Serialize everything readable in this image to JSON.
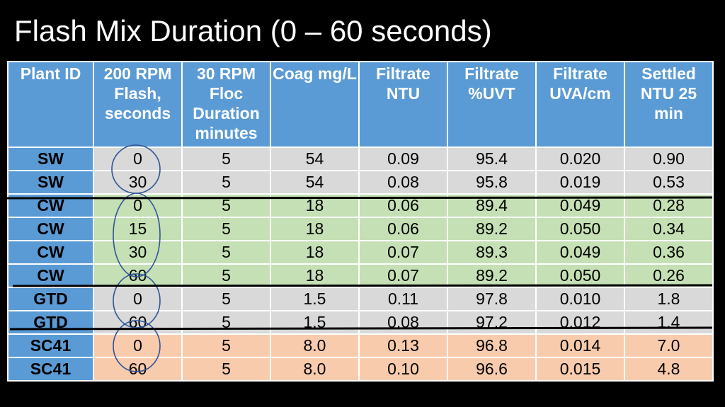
{
  "title": "Flash Mix Duration (0 – 60 seconds)",
  "colors": {
    "header_bg": "#5b9bd5",
    "gray_group": "#d9d9d9",
    "green_group": "#c5e0b4",
    "orange_group": "#f8cbad",
    "ellipse_stroke": "#2f5597",
    "strike_line": "#000000"
  },
  "table": {
    "headers": [
      "Plant ID",
      "200 RPM Flash, seconds",
      "30 RPM Floc Duration minutes",
      "Coag mg/L",
      "Filtrate NTU",
      "Filtrate %UVT",
      "Filtrate UVA/cm",
      "Settled NTU 25 min"
    ],
    "rows": [
      {
        "group": "gray",
        "cells": [
          "SW",
          "0",
          "5",
          "54",
          "0.09",
          "95.4",
          "0.020",
          "0.90"
        ]
      },
      {
        "group": "gray",
        "cells": [
          "SW",
          "30",
          "5",
          "54",
          "0.08",
          "95.8",
          "0.019",
          "0.53"
        ]
      },
      {
        "group": "green",
        "cells": [
          "CW",
          "0",
          "5",
          "18",
          "0.06",
          "89.4",
          "0.049",
          "0.28"
        ]
      },
      {
        "group": "green",
        "cells": [
          "CW",
          "15",
          "5",
          "18",
          "0.06",
          "89.2",
          "0.050",
          "0.34"
        ]
      },
      {
        "group": "green",
        "cells": [
          "CW",
          "30",
          "5",
          "18",
          "0.07",
          "89.3",
          "0.049",
          "0.36"
        ]
      },
      {
        "group": "green",
        "cells": [
          "CW",
          "60",
          "5",
          "18",
          "0.07",
          "89.2",
          "0.050",
          "0.26"
        ]
      },
      {
        "group": "gray",
        "cells": [
          "GTD",
          "0",
          "5",
          "1.5",
          "0.11",
          "97.8",
          "0.010",
          "1.8"
        ]
      },
      {
        "group": "gray",
        "cells": [
          "GTD",
          "60",
          "5",
          "1.5",
          "0.08",
          "97.2",
          "0.012",
          "1.4"
        ]
      },
      {
        "group": "orange",
        "cells": [
          "SC41",
          "0",
          "5",
          "8.0",
          "0.13",
          "96.8",
          "0.014",
          "7.0"
        ]
      },
      {
        "group": "orange",
        "cells": [
          "SC41",
          "60",
          "5",
          "8.0",
          "0.10",
          "96.6",
          "0.015",
          "4.8"
        ]
      }
    ]
  }
}
